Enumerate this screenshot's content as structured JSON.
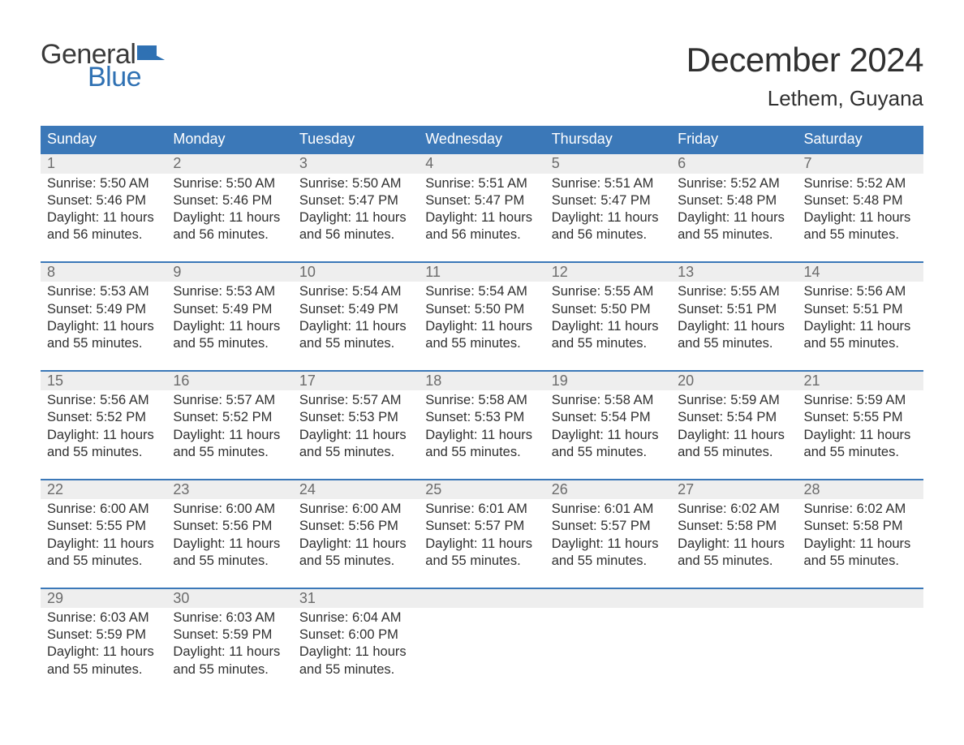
{
  "logo": {
    "word1": "General",
    "word2": "Blue"
  },
  "title": "December 2024",
  "location": "Lethem, Guyana",
  "colors": {
    "header_bg": "#3b78b8",
    "header_text": "#ffffff",
    "week_border": "#3b78b8",
    "daynum_bg": "#eeeeee",
    "daynum_text": "#6b6b6b",
    "body_text": "#303030",
    "logo_gray": "#3a3a3a",
    "logo_blue": "#2f71b3",
    "page_bg": "#ffffff"
  },
  "day_names": [
    "Sunday",
    "Monday",
    "Tuesday",
    "Wednesday",
    "Thursday",
    "Friday",
    "Saturday"
  ],
  "weeks": [
    [
      {
        "n": "1",
        "sr": "5:50 AM",
        "ss": "5:46 PM",
        "dl1": "11 hours",
        "dl2": "and 56 minutes."
      },
      {
        "n": "2",
        "sr": "5:50 AM",
        "ss": "5:46 PM",
        "dl1": "11 hours",
        "dl2": "and 56 minutes."
      },
      {
        "n": "3",
        "sr": "5:50 AM",
        "ss": "5:47 PM",
        "dl1": "11 hours",
        "dl2": "and 56 minutes."
      },
      {
        "n": "4",
        "sr": "5:51 AM",
        "ss": "5:47 PM",
        "dl1": "11 hours",
        "dl2": "and 56 minutes."
      },
      {
        "n": "5",
        "sr": "5:51 AM",
        "ss": "5:47 PM",
        "dl1": "11 hours",
        "dl2": "and 56 minutes."
      },
      {
        "n": "6",
        "sr": "5:52 AM",
        "ss": "5:48 PM",
        "dl1": "11 hours",
        "dl2": "and 55 minutes."
      },
      {
        "n": "7",
        "sr": "5:52 AM",
        "ss": "5:48 PM",
        "dl1": "11 hours",
        "dl2": "and 55 minutes."
      }
    ],
    [
      {
        "n": "8",
        "sr": "5:53 AM",
        "ss": "5:49 PM",
        "dl1": "11 hours",
        "dl2": "and 55 minutes."
      },
      {
        "n": "9",
        "sr": "5:53 AM",
        "ss": "5:49 PM",
        "dl1": "11 hours",
        "dl2": "and 55 minutes."
      },
      {
        "n": "10",
        "sr": "5:54 AM",
        "ss": "5:49 PM",
        "dl1": "11 hours",
        "dl2": "and 55 minutes."
      },
      {
        "n": "11",
        "sr": "5:54 AM",
        "ss": "5:50 PM",
        "dl1": "11 hours",
        "dl2": "and 55 minutes."
      },
      {
        "n": "12",
        "sr": "5:55 AM",
        "ss": "5:50 PM",
        "dl1": "11 hours",
        "dl2": "and 55 minutes."
      },
      {
        "n": "13",
        "sr": "5:55 AM",
        "ss": "5:51 PM",
        "dl1": "11 hours",
        "dl2": "and 55 minutes."
      },
      {
        "n": "14",
        "sr": "5:56 AM",
        "ss": "5:51 PM",
        "dl1": "11 hours",
        "dl2": "and 55 minutes."
      }
    ],
    [
      {
        "n": "15",
        "sr": "5:56 AM",
        "ss": "5:52 PM",
        "dl1": "11 hours",
        "dl2": "and 55 minutes."
      },
      {
        "n": "16",
        "sr": "5:57 AM",
        "ss": "5:52 PM",
        "dl1": "11 hours",
        "dl2": "and 55 minutes."
      },
      {
        "n": "17",
        "sr": "5:57 AM",
        "ss": "5:53 PM",
        "dl1": "11 hours",
        "dl2": "and 55 minutes."
      },
      {
        "n": "18",
        "sr": "5:58 AM",
        "ss": "5:53 PM",
        "dl1": "11 hours",
        "dl2": "and 55 minutes."
      },
      {
        "n": "19",
        "sr": "5:58 AM",
        "ss": "5:54 PM",
        "dl1": "11 hours",
        "dl2": "and 55 minutes."
      },
      {
        "n": "20",
        "sr": "5:59 AM",
        "ss": "5:54 PM",
        "dl1": "11 hours",
        "dl2": "and 55 minutes."
      },
      {
        "n": "21",
        "sr": "5:59 AM",
        "ss": "5:55 PM",
        "dl1": "11 hours",
        "dl2": "and 55 minutes."
      }
    ],
    [
      {
        "n": "22",
        "sr": "6:00 AM",
        "ss": "5:55 PM",
        "dl1": "11 hours",
        "dl2": "and 55 minutes."
      },
      {
        "n": "23",
        "sr": "6:00 AM",
        "ss": "5:56 PM",
        "dl1": "11 hours",
        "dl2": "and 55 minutes."
      },
      {
        "n": "24",
        "sr": "6:00 AM",
        "ss": "5:56 PM",
        "dl1": "11 hours",
        "dl2": "and 55 minutes."
      },
      {
        "n": "25",
        "sr": "6:01 AM",
        "ss": "5:57 PM",
        "dl1": "11 hours",
        "dl2": "and 55 minutes."
      },
      {
        "n": "26",
        "sr": "6:01 AM",
        "ss": "5:57 PM",
        "dl1": "11 hours",
        "dl2": "and 55 minutes."
      },
      {
        "n": "27",
        "sr": "6:02 AM",
        "ss": "5:58 PM",
        "dl1": "11 hours",
        "dl2": "and 55 minutes."
      },
      {
        "n": "28",
        "sr": "6:02 AM",
        "ss": "5:58 PM",
        "dl1": "11 hours",
        "dl2": "and 55 minutes."
      }
    ],
    [
      {
        "n": "29",
        "sr": "6:03 AM",
        "ss": "5:59 PM",
        "dl1": "11 hours",
        "dl2": "and 55 minutes."
      },
      {
        "n": "30",
        "sr": "6:03 AM",
        "ss": "5:59 PM",
        "dl1": "11 hours",
        "dl2": "and 55 minutes."
      },
      {
        "n": "31",
        "sr": "6:04 AM",
        "ss": "6:00 PM",
        "dl1": "11 hours",
        "dl2": "and 55 minutes."
      },
      null,
      null,
      null,
      null
    ]
  ],
  "labels": {
    "sunrise_prefix": "Sunrise: ",
    "sunset_prefix": "Sunset: ",
    "daylight_prefix": "Daylight: "
  }
}
